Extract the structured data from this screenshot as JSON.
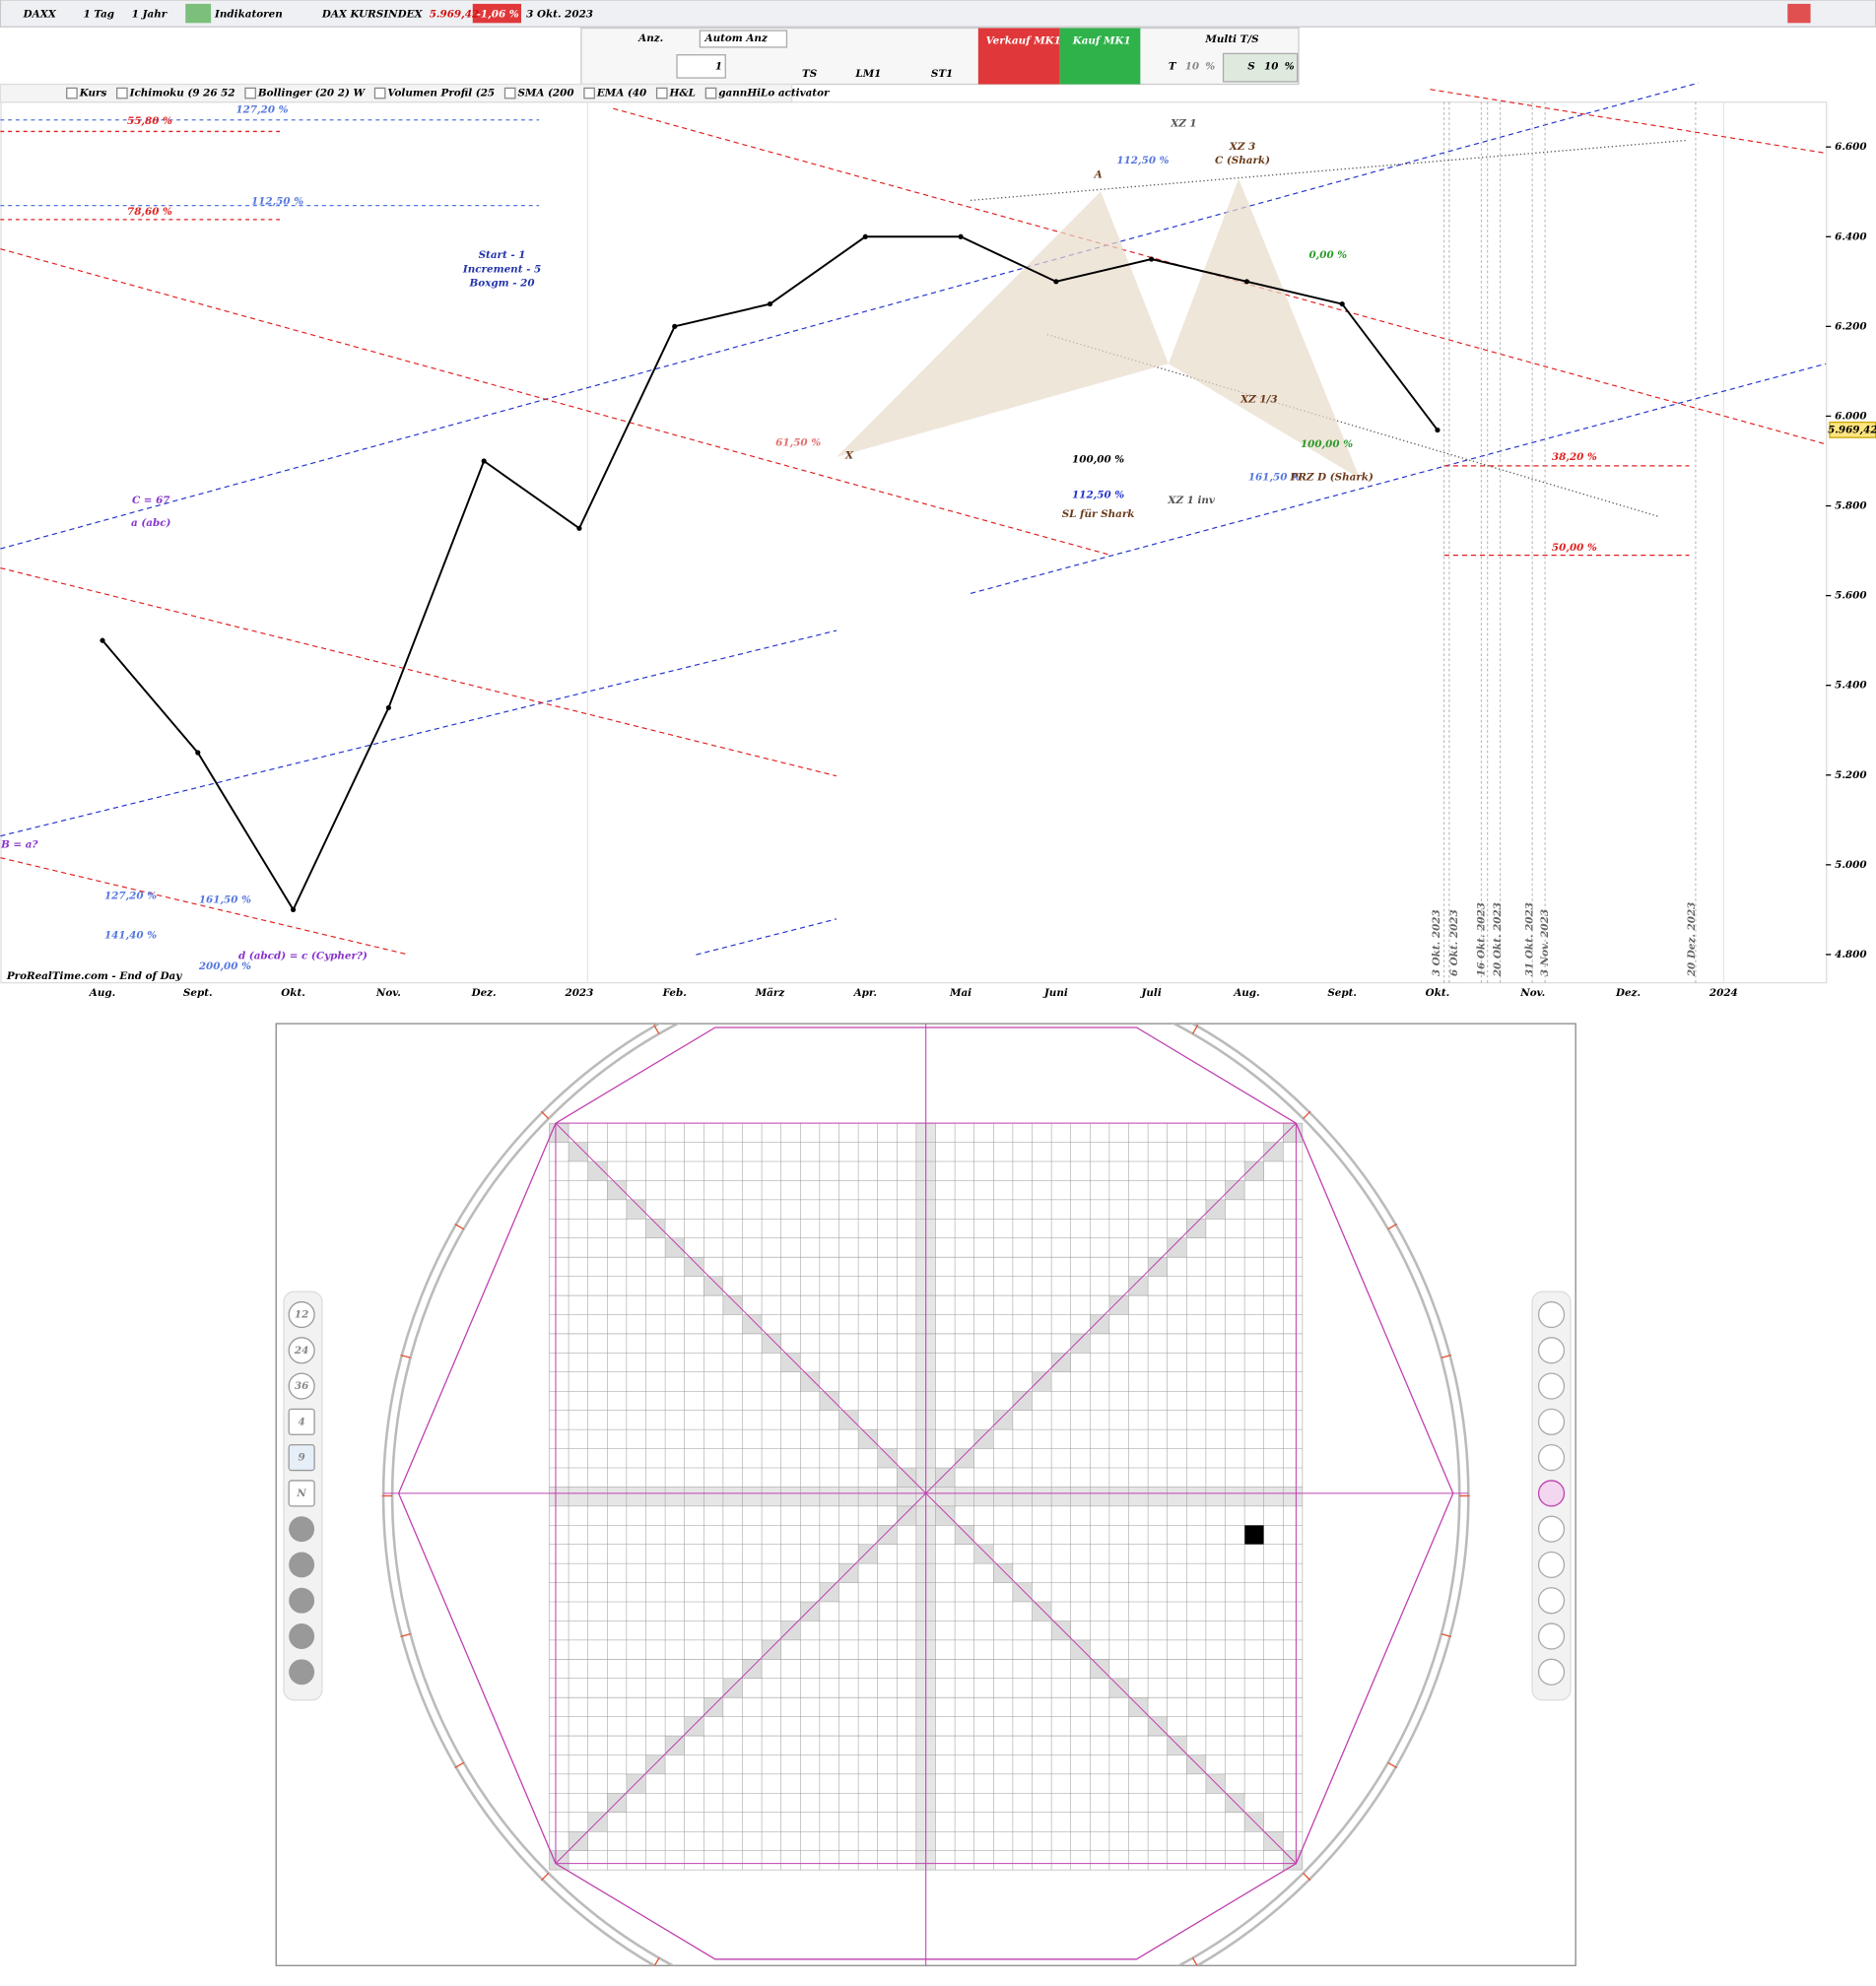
{
  "toolbar": {
    "symbol": "DAXX",
    "interval": "1 Tag",
    "period": "1 Jahr",
    "indicators": "Indikatoren",
    "instrument": "DAX KURSINDEX",
    "price": "5.969,42",
    "change": "-1,06 %",
    "date": "3 Okt. 2023"
  },
  "order_panel": {
    "anz_label": "Anz.",
    "autom_anz": "Autom Anz",
    "quantity": "1",
    "ts": "TS",
    "lm1": "LM1",
    "st1": "ST1",
    "sell": "Verkauf MK1",
    "buy": "Kauf MK1",
    "multi": "Multi T/S",
    "t_label": "T",
    "t_value": "10",
    "t_unit": "%",
    "s_label": "S",
    "s_value": "10",
    "s_unit": "%"
  },
  "indicator_bar": [
    "Kurs",
    "Ichimoku (9 26 52",
    "Bollinger (20 2) W",
    "Volumen Profil (25",
    "SMA (200",
    "EMA (40",
    "H&L",
    "gannHiLo activator"
  ],
  "chart_data": {
    "type": "line",
    "categories": [
      "Aug.",
      "Sept.",
      "Okt.",
      "Nov.",
      "Dez.",
      "2023",
      "Feb.",
      "März",
      "Apr.",
      "Mai",
      "Juni",
      "Juli",
      "Aug.",
      "Sept.",
      "Okt.",
      "Nov.",
      "Dez.",
      "2024"
    ],
    "values": [
      5500,
      5250,
      4900,
      5350,
      5900,
      5750,
      6200,
      6250,
      6400,
      6400,
      6300,
      6350,
      6300,
      6250,
      5969,
      null,
      null,
      null
    ],
    "color": "#000000",
    "ylim": [
      4737,
      6700
    ],
    "yticks": [
      {
        "value": 4800,
        "label": "4.800"
      },
      {
        "value": 5000,
        "label": "5.000"
      },
      {
        "value": 5200,
        "label": "5.200"
      },
      {
        "value": 5400,
        "label": "5.400"
      },
      {
        "value": 5600,
        "label": "5.600"
      },
      {
        "value": 5800,
        "label": "5.800"
      },
      {
        "value": 6000,
        "label": "6.000"
      },
      {
        "value": 6200,
        "label": "6.200"
      },
      {
        "value": 6400,
        "label": "6.400"
      },
      {
        "value": 6600,
        "label": "6.600"
      }
    ],
    "last_price": {
      "value": 5969.42,
      "label": "5.969,42"
    },
    "annotations": [
      "127,20 %",
      "55,80 %",
      "112,50 %",
      "78,60 %",
      "C = 67",
      "a (abc)",
      "Start - 1",
      "Increment - 5",
      "Boxgm - 20",
      "61,50 %",
      "X",
      "A",
      "112,50 %",
      "XZ 1",
      "XZ 3",
      "C (Shark)",
      "0,00 %",
      "XZ 1/3",
      "100,00 %",
      "161,50 %",
      "PRZ D (Shark)",
      "XZ 1 inv",
      "100,00 %",
      "112,50 %",
      "SL für Shark",
      "38,20 %",
      "50,00 %",
      "127,20 %",
      "161,50 %",
      "141,40 %",
      "200,00 %",
      "d (abcd) = c (Cypher?)",
      "B = a?"
    ],
    "date_markers": [
      "3 Okt. 2023",
      "6 Okt. 2023",
      "16 Okt. 2023",
      "20 Okt. 2023",
      "31 Okt. 2023",
      "3 Nov. 2023",
      "20 Dez. 2023"
    ],
    "footer": "ProRealTime.com - End of Day"
  },
  "square_of_nine": {
    "buttons": [
      "12",
      "24",
      "36",
      "4",
      "9",
      "N"
    ]
  }
}
